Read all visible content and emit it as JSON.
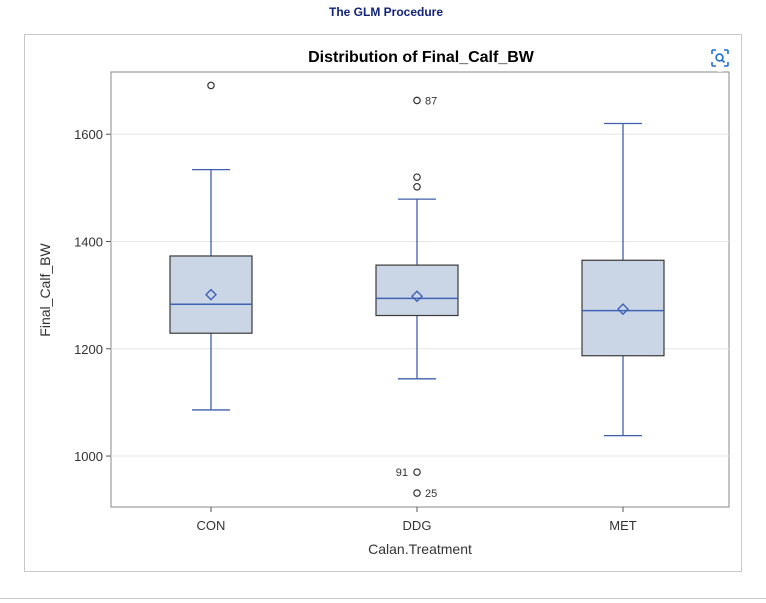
{
  "procedure_title": "The GLM Procedure",
  "zoom_icon": "focus-zoom-icon",
  "colors": {
    "box_fill": "#cad5e5",
    "box_edge": "#3a3a3a",
    "whisker": "#3f5fae",
    "median": "#3f62b5",
    "mean_marker": "#3f62b5",
    "outlier": "#333333",
    "grid": "#e6e6e6"
  },
  "chart_data": {
    "type": "box",
    "title": "Distribution of Final_Calf_BW",
    "xlabel": "Calan.Treatment",
    "ylabel": "Final_Calf_BW",
    "ylim": [
      905,
      1716
    ],
    "yticks": [
      1000,
      1200,
      1400,
      1600
    ],
    "grid": true,
    "categories": [
      "CON",
      "DDG",
      "MET"
    ],
    "boxes": [
      {
        "category": "CON",
        "whisker_low": 1086,
        "q1": 1229,
        "median": 1283,
        "q3": 1373,
        "whisker_high": 1534,
        "mean": 1301,
        "outliers": [
          {
            "value": 1691,
            "label": ""
          }
        ]
      },
      {
        "category": "DDG",
        "whisker_low": 1144,
        "q1": 1262,
        "median": 1294,
        "q3": 1356,
        "whisker_high": 1479,
        "mean": 1298,
        "outliers": [
          {
            "value": 1663,
            "label": "87"
          },
          {
            "value": 1520,
            "label": ""
          },
          {
            "value": 1502,
            "label": ""
          },
          {
            "value": 970,
            "label": "91"
          },
          {
            "value": 931,
            "label": "25"
          }
        ]
      },
      {
        "category": "MET",
        "whisker_low": 1038,
        "q1": 1187,
        "median": 1271,
        "q3": 1365,
        "whisker_high": 1620,
        "mean": 1274,
        "outliers": []
      }
    ]
  }
}
